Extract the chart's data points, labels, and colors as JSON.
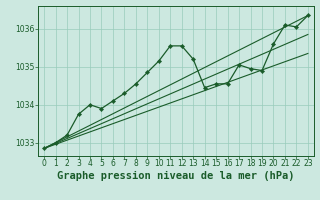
{
  "background_color": "#cce8e0",
  "plot_bg_color": "#cce8e0",
  "grid_color": "#99ccbb",
  "line_color": "#1a5c2a",
  "title": "Graphe pression niveau de la mer (hPa)",
  "xlim": [
    -0.5,
    23.5
  ],
  "ylim": [
    1032.65,
    1036.6
  ],
  "yticks": [
    1033,
    1034,
    1035,
    1036
  ],
  "xticks": [
    0,
    1,
    2,
    3,
    4,
    5,
    6,
    7,
    8,
    9,
    10,
    11,
    12,
    13,
    14,
    15,
    16,
    17,
    18,
    19,
    20,
    21,
    22,
    23
  ],
  "main_series": [
    1032.85,
    1033.0,
    1033.2,
    1033.75,
    1034.0,
    1033.9,
    1034.1,
    1034.3,
    1034.55,
    1034.85,
    1035.15,
    1035.55,
    1035.55,
    1035.2,
    1034.45,
    1034.55,
    1034.55,
    1035.05,
    1034.95,
    1034.9,
    1035.6,
    1036.1,
    1036.05,
    1036.35
  ],
  "trend_lines": [
    {
      "x": [
        0,
        23
      ],
      "y": [
        1032.85,
        1036.35
      ]
    },
    {
      "x": [
        0,
        23
      ],
      "y": [
        1032.85,
        1035.85
      ]
    },
    {
      "x": [
        0,
        23
      ],
      "y": [
        1032.85,
        1035.35
      ]
    }
  ],
  "title_fontsize": 7.5,
  "tick_fontsize": 5.5
}
